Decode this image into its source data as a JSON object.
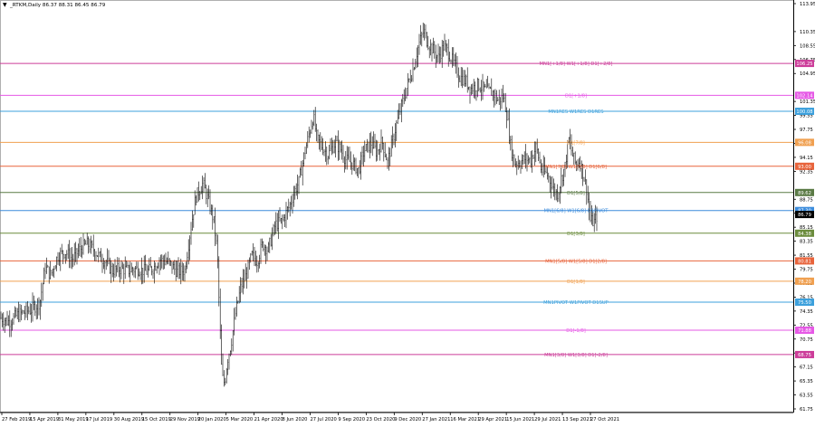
{
  "header": {
    "menu_glyph": "▼",
    "title": "_RTKM,Daily  86.37 88.31 86.45 86.79"
  },
  "chart_data": {
    "type": "candlestick",
    "symbol": "_RTKM",
    "timeframe": "Daily",
    "ohlc_last": {
      "open": 86.37,
      "high": 88.31,
      "low": 86.45,
      "close": 86.79
    },
    "ylim": [
      61.75,
      113.95
    ],
    "y_ticks": [
      113.95,
      110.35,
      108.55,
      106.75,
      104.95,
      101.35,
      99.55,
      97.75,
      95.95,
      94.15,
      92.35,
      88.75,
      86.95,
      85.15,
      83.35,
      81.55,
      79.75,
      77.95,
      76.15,
      74.35,
      72.55,
      70.75,
      68.95,
      67.15,
      65.35,
      63.55,
      61.75
    ],
    "x_labels": [
      "27 Feb 2019",
      "15 Apr 2019",
      "31 May 2019",
      "17 Jul 2019",
      "30 Aug 2019",
      "15 Oct 2019",
      "29 Nov 2019",
      "20 Jan 2020",
      "5 Mar 2020",
      "21 Apr 2020",
      "8 Jun 2020",
      "27 Jul 2020",
      "9 Sep 2020",
      "23 Oct 2020",
      "9 Dec 2020",
      "27 Jan 2021",
      "16 Mar 2021",
      "29 Apr 2021",
      "15 Jun 2021",
      "29 Jul 2021",
      "13 Sep 2021",
      "27 Oct 2021"
    ],
    "price_path": [
      [
        0,
        73.5
      ],
      [
        10,
        73.0
      ],
      [
        20,
        73.9
      ],
      [
        34,
        74.5
      ],
      [
        44,
        75.5
      ],
      [
        50,
        80.0
      ],
      [
        56,
        79.0
      ],
      [
        64,
        81.5
      ],
      [
        72,
        82.0
      ],
      [
        80,
        81.0
      ],
      [
        88,
        82.3
      ],
      [
        96,
        83.0
      ],
      [
        104,
        82.2
      ],
      [
        110,
        81.3
      ],
      [
        118,
        80.6
      ],
      [
        124,
        79.5
      ],
      [
        132,
        79.8
      ],
      [
        142,
        79.6
      ],
      [
        152,
        79.8
      ],
      [
        162,
        79.4
      ],
      [
        170,
        80.0
      ],
      [
        176,
        81.0
      ],
      [
        186,
        80.6
      ],
      [
        196,
        79.4
      ],
      [
        204,
        79.6
      ],
      [
        210,
        84.5
      ],
      [
        216,
        89.0
      ],
      [
        224,
        90.8
      ],
      [
        230,
        88.6
      ],
      [
        236,
        86.0
      ],
      [
        240,
        82.0
      ],
      [
        243,
        72.0
      ],
      [
        245,
        66.0
      ],
      [
        248,
        65.0
      ],
      [
        251,
        68.0
      ],
      [
        255,
        70.0
      ],
      [
        260,
        74.0
      ],
      [
        266,
        77.5
      ],
      [
        272,
        79.0
      ],
      [
        278,
        81.5
      ],
      [
        284,
        80.8
      ],
      [
        290,
        83.0
      ],
      [
        296,
        82.2
      ],
      [
        304,
        85.5
      ],
      [
        312,
        86.0
      ],
      [
        320,
        88.0
      ],
      [
        326,
        90.0
      ],
      [
        330,
        91.0
      ],
      [
        336,
        94.5
      ],
      [
        342,
        97.5
      ],
      [
        346,
        99.5
      ],
      [
        350,
        96.5
      ],
      [
        356,
        95.5
      ],
      [
        362,
        94.5
      ],
      [
        370,
        96.0
      ],
      [
        376,
        95.2
      ],
      [
        382,
        93.8
      ],
      [
        388,
        93.5
      ],
      [
        396,
        92.5
      ],
      [
        402,
        95.0
      ],
      [
        410,
        96.0
      ],
      [
        416,
        94.8
      ],
      [
        422,
        96.2
      ],
      [
        428,
        93.5
      ],
      [
        432,
        95.5
      ],
      [
        438,
        98.5
      ],
      [
        444,
        101.0
      ],
      [
        450,
        103.5
      ],
      [
        456,
        105.5
      ],
      [
        462,
        108.5
      ],
      [
        468,
        110.5
      ],
      [
        472,
        109.0
      ],
      [
        478,
        108.0
      ],
      [
        484,
        107.0
      ],
      [
        490,
        108.5
      ],
      [
        496,
        107.5
      ],
      [
        502,
        106.0
      ],
      [
        508,
        104.5
      ],
      [
        514,
        104.0
      ],
      [
        520,
        103.0
      ],
      [
        528,
        103.5
      ],
      [
        536,
        102.8
      ],
      [
        544,
        102.5
      ],
      [
        550,
        101.5
      ],
      [
        556,
        102.0
      ],
      [
        560,
        99.5
      ],
      [
        564,
        95.5
      ],
      [
        568,
        93.5
      ],
      [
        574,
        93.5
      ],
      [
        580,
        94.0
      ],
      [
        586,
        93.8
      ],
      [
        592,
        95.5
      ],
      [
        598,
        92.5
      ],
      [
        604,
        92.0
      ],
      [
        608,
        91.0
      ],
      [
        612,
        89.8
      ],
      [
        616,
        89.5
      ],
      [
        620,
        91.5
      ],
      [
        624,
        93.0
      ],
      [
        628,
        96.5
      ],
      [
        632,
        94.5
      ],
      [
        636,
        93.2
      ],
      [
        640,
        93.8
      ],
      [
        644,
        92.0
      ],
      [
        648,
        90.0
      ],
      [
        652,
        86.0
      ],
      [
        656,
        85.8
      ],
      [
        660,
        86.79
      ]
    ],
    "levels": [
      {
        "label": "MN1[+1/8] W1[+1/8] D1[+2/8]",
        "value": 106.25,
        "price_label": "106.25",
        "color": "#cc3c99"
      },
      {
        "label": "D1[+1/8]",
        "value": 102.14,
        "price_label": "102.14",
        "color": "#e659e6"
      },
      {
        "label": "MN1RES W1RES D1RES",
        "value": 100.08,
        "price_label": "100.08",
        "color": "#3ca0dc"
      },
      {
        "label": "D1[7/8]",
        "value": 96.08,
        "price_label": "96.08",
        "color": "#f0a050"
      },
      {
        "label": "MN1[7/8] W1[7/8] D1[6/8]",
        "value": 93.0,
        "price_label": "93.00",
        "color": "#e8643c"
      },
      {
        "label": "D1[5/8]",
        "value": 89.62,
        "price_label": "89.62",
        "color": "#5a7a45"
      },
      {
        "label": "MN1[6/8] W1[6/8] D1PIVOT",
        "value": 87.3,
        "price_label": "87.30",
        "color": "#3c8cdc"
      },
      {
        "label": "D1[3/8]",
        "value": 84.38,
        "price_label": "84.38",
        "color": "#6b8c3c"
      },
      {
        "label": "MN1[5/8] W1[5/8] D1[2/8]",
        "value": 80.81,
        "price_label": "80.81",
        "color": "#e8643c"
      },
      {
        "label": "D1[1/8]",
        "value": 78.2,
        "price_label": "78.20",
        "color": "#f0a050"
      },
      {
        "label": "MN1PIVOT W1PIVOT D1SUP",
        "value": 75.5,
        "price_label": "75.50",
        "color": "#3ca0dc"
      },
      {
        "label": "D1[-1/8]",
        "value": 71.88,
        "price_label": "71.88",
        "color": "#e659e6"
      },
      {
        "label": "MN1[3/8] W1[3/8] D1[-2/8]",
        "value": 68.75,
        "price_label": "68.75",
        "color": "#cc3c99"
      }
    ],
    "current_price": {
      "value": 86.79,
      "label": "86.79"
    }
  }
}
